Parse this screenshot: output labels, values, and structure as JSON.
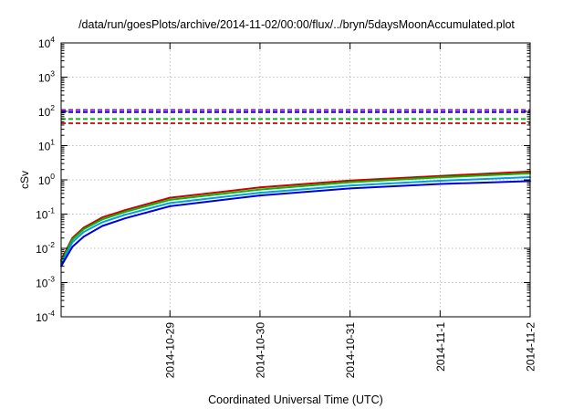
{
  "chart_data": {
    "type": "line",
    "title": "/data/run/goesPlots/archive/2014-11-02/00:00/flux/../bryn/5daysMoonAccumulated.plot",
    "xlabel": "Coordinated Universal Time (UTC)",
    "ylabel": "cSv",
    "yscale": "log",
    "ylim": [
      0.0001,
      10000
    ],
    "xlim": [
      "2014-10-27T19:00",
      "2014-11-02T00:00"
    ],
    "grid": true,
    "legend": "none",
    "y_ticks": [
      {
        "value": 0.0001,
        "base": "10",
        "exp": "-4"
      },
      {
        "value": 0.001,
        "base": "10",
        "exp": "-3"
      },
      {
        "value": 0.01,
        "base": "10",
        "exp": "-2"
      },
      {
        "value": 0.1,
        "base": "10",
        "exp": "-1"
      },
      {
        "value": 1,
        "base": "10",
        "exp": "0"
      },
      {
        "value": 10,
        "base": "10",
        "exp": "1"
      },
      {
        "value": 100,
        "base": "10",
        "exp": "2"
      },
      {
        "value": 1000,
        "base": "10",
        "exp": "3"
      },
      {
        "value": 10000,
        "base": "10",
        "exp": "4"
      }
    ],
    "x_ticks": [
      "2014-10-29",
      "2014-10-30",
      "2014-10-31",
      "2014-11-1",
      "2014-11-2"
    ],
    "x_tick_dates": [
      "2014-10-29T00:00",
      "2014-10-30T00:00",
      "2014-10-31T00:00",
      "2014-11-01T00:00",
      "2014-11-02T00:00"
    ],
    "series": [
      {
        "color": "#cc0000",
        "style": "solid",
        "x": [
          "2014-10-27T19:00",
          "2014-10-27T22:00",
          "2014-10-28T01:00",
          "2014-10-28T06:00",
          "2014-10-28T12:00",
          "2014-10-29T00:00",
          "2014-10-30T00:00",
          "2014-10-31T00:00",
          "2014-11-01T00:00",
          "2014-11-02T00:00"
        ],
        "y": [
          0.0045,
          0.02,
          0.04,
          0.08,
          0.13,
          0.3,
          0.6,
          0.95,
          1.3,
          1.75
        ]
      },
      {
        "color": "#00bb00",
        "style": "solid",
        "x": [
          "2014-10-27T19:00",
          "2014-10-27T22:00",
          "2014-10-28T01:00",
          "2014-10-28T06:00",
          "2014-10-28T12:00",
          "2014-10-29T00:00",
          "2014-10-30T00:00",
          "2014-10-31T00:00",
          "2014-11-01T00:00",
          "2014-11-02T00:00"
        ],
        "y": [
          0.004,
          0.018,
          0.036,
          0.07,
          0.115,
          0.26,
          0.52,
          0.85,
          1.18,
          1.55
        ]
      },
      {
        "color": "#00a0e0",
        "style": "solid",
        "x": [
          "2014-10-27T19:00",
          "2014-10-27T22:00",
          "2014-10-28T01:00",
          "2014-10-28T06:00",
          "2014-10-28T12:00",
          "2014-10-29T00:00",
          "2014-10-30T00:00",
          "2014-10-31T00:00",
          "2014-11-01T00:00",
          "2014-11-02T00:00"
        ],
        "y": [
          0.0035,
          0.015,
          0.03,
          0.058,
          0.095,
          0.21,
          0.42,
          0.68,
          0.94,
          1.2
        ]
      },
      {
        "color": "#0000dd",
        "style": "solid",
        "x": [
          "2014-10-27T19:00",
          "2014-10-27T22:00",
          "2014-10-28T01:00",
          "2014-10-28T06:00",
          "2014-10-28T12:00",
          "2014-10-29T00:00",
          "2014-10-30T00:00",
          "2014-10-31T00:00",
          "2014-11-01T00:00",
          "2014-11-02T00:00"
        ],
        "y": [
          0.003,
          0.011,
          0.022,
          0.045,
          0.075,
          0.17,
          0.35,
          0.56,
          0.76,
          0.92
        ]
      },
      {
        "color": "#9900cc",
        "style": "dashed",
        "x": [
          "2014-10-27T19:00",
          "2014-11-02T00:00"
        ],
        "y": [
          110,
          110
        ]
      },
      {
        "color": "#0000dd",
        "style": "dashed",
        "x": [
          "2014-10-27T19:00",
          "2014-11-02T00:00"
        ],
        "y": [
          95,
          95
        ]
      },
      {
        "color": "#00bb00",
        "style": "dashed",
        "x": [
          "2014-10-27T19:00",
          "2014-11-02T00:00"
        ],
        "y": [
          60,
          60
        ]
      },
      {
        "color": "#cc0000",
        "style": "dashed",
        "x": [
          "2014-10-27T19:00",
          "2014-11-02T00:00"
        ],
        "y": [
          45,
          45
        ]
      }
    ]
  }
}
